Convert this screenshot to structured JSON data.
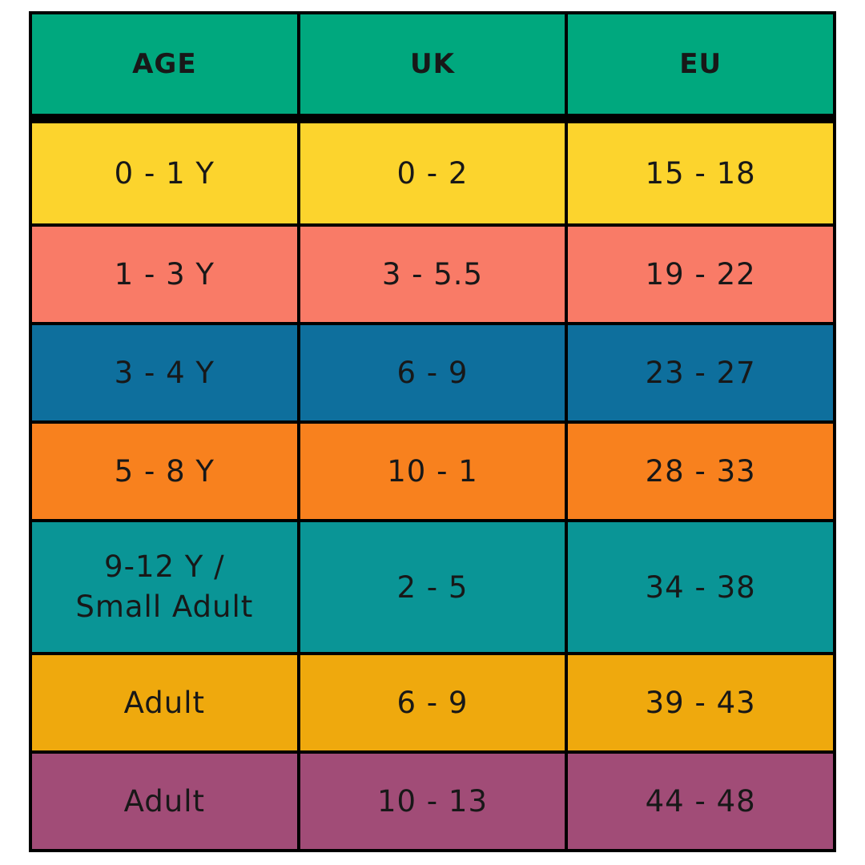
{
  "page": {
    "background": "#FFFFFF",
    "description": "Shoe size conversion chart by age, UK and EU sizes"
  },
  "table": {
    "text_color": "#181818",
    "border_color": "#000000",
    "header": {
      "bg": "#00A87E",
      "columns": [
        "AGE",
        "UK",
        "EU"
      ]
    },
    "rows": [
      {
        "bg": "#FCD42D",
        "age": "0 - 1 Y",
        "uk": "0 - 2",
        "eu": "15 - 18"
      },
      {
        "bg": "#F97B67",
        "age": "1 - 3 Y",
        "uk": "3 - 5.5",
        "eu": "19 - 22"
      },
      {
        "bg": "#0E6F9D",
        "age": "3 - 4 Y",
        "uk": "6 - 9",
        "eu": "23 - 27"
      },
      {
        "bg": "#F8811E",
        "age": "5 - 8 Y",
        "uk": "10 - 1",
        "eu": "28 - 33"
      },
      {
        "bg": "#0A9596",
        "age_line1": "9-12 Y /",
        "age_line2": "Small Adult",
        "uk": "2 - 5",
        "eu": "34 - 38"
      },
      {
        "bg": "#EFA90D",
        "age": "Adult",
        "uk": "6 - 9",
        "eu": "39 - 43"
      },
      {
        "bg": "#A14C77",
        "age": "Adult",
        "uk": "10 - 13",
        "eu": "44 - 48"
      }
    ]
  }
}
